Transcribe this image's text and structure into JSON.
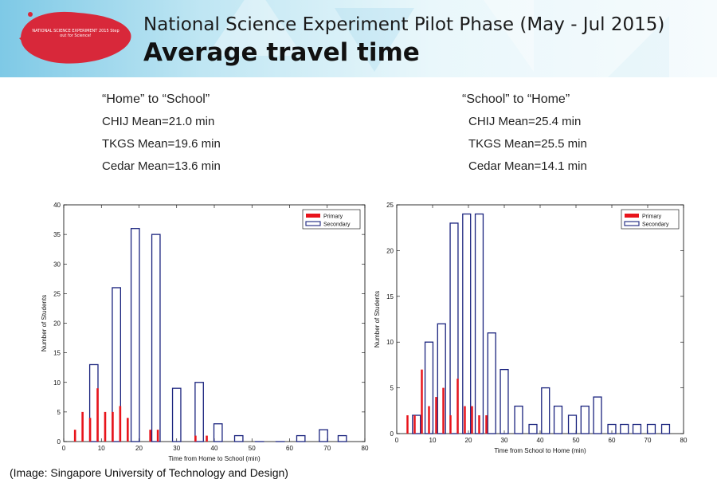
{
  "header": {
    "logo_text": "NATIONAL SCIENCE EXPERIMENT 2015 Step out for Science!",
    "title_line1": "National Science Experiment Pilot Phase (May - Jul 2015)",
    "title_line2": "Average travel time",
    "colors": {
      "banner_start": "#7ec9e6",
      "logo": "#d8283a"
    }
  },
  "stats_left": {
    "heading": "“Home”  to “School”",
    "lines": [
      "CHIJ Mean=21.0 min",
      "TKGS Mean=19.6 min",
      "Cedar Mean=13.6 min"
    ]
  },
  "stats_right": {
    "heading": "“School” to “Home”",
    "lines": [
      "CHIJ Mean=25.4 min",
      "TKGS Mean=25.5 min",
      "Cedar Mean=14.1 min"
    ]
  },
  "caption": "(Image: Singapore University of Technology and Design)",
  "chart_data": [
    {
      "type": "bar",
      "xlabel": "Time from Home to School (min)",
      "ylabel": "Number of Students",
      "xlim": [
        0,
        80
      ],
      "ylim": [
        0,
        40
      ],
      "xticks": [
        "0",
        "10",
        "20",
        "30",
        "40",
        "50",
        "60",
        "70",
        "80"
      ],
      "yticks": [
        "0",
        "5",
        "10",
        "15",
        "20",
        "25",
        "30",
        "35",
        "40"
      ],
      "legend_position": "top-right",
      "series": [
        {
          "name": "Primary",
          "color": "#e8141b",
          "x": [
            3,
            5,
            7,
            9,
            11,
            13,
            15,
            17,
            23,
            25,
            35,
            38
          ],
          "y": [
            2,
            5,
            4,
            9,
            5,
            5,
            6,
            4,
            2,
            2,
            1,
            1
          ]
        },
        {
          "name": "Secondary",
          "color": "#1a237e",
          "x": [
            8,
            14,
            19,
            24.5,
            30,
            36,
            41,
            46.5,
            52,
            57.5,
            63,
            69,
            74
          ],
          "y": [
            13,
            26,
            36,
            35,
            9,
            10,
            3,
            1,
            0,
            0,
            1,
            2,
            1
          ]
        }
      ]
    },
    {
      "type": "bar",
      "xlabel": "Time from School to Home (min)",
      "ylabel": "Number of Students",
      "xlim": [
        0,
        80
      ],
      "ylim": [
        0,
        25
      ],
      "xticks": [
        "0",
        "10",
        "20",
        "30",
        "40",
        "50",
        "60",
        "70",
        "80"
      ],
      "yticks": [
        "0",
        "5",
        "10",
        "15",
        "20",
        "25"
      ],
      "legend_position": "top-right",
      "series": [
        {
          "name": "Primary",
          "color": "#e8141b",
          "x": [
            3,
            5,
            7,
            9,
            11,
            13,
            15,
            17,
            19,
            21,
            23,
            25
          ],
          "y": [
            2,
            2,
            7,
            3,
            4,
            5,
            2,
            6,
            3,
            3,
            2,
            2
          ]
        },
        {
          "name": "Secondary",
          "color": "#1a237e",
          "x": [
            5.5,
            9,
            12.5,
            16,
            19.5,
            23,
            26.5,
            30,
            34,
            38,
            41.5,
            45,
            49,
            52.5,
            56,
            60,
            63.5,
            67,
            71,
            75
          ],
          "y": [
            2,
            10,
            12,
            23,
            24,
            24,
            11,
            7,
            3,
            1,
            5,
            3,
            2,
            3,
            4,
            1,
            1,
            1,
            1,
            1
          ]
        }
      ]
    }
  ]
}
